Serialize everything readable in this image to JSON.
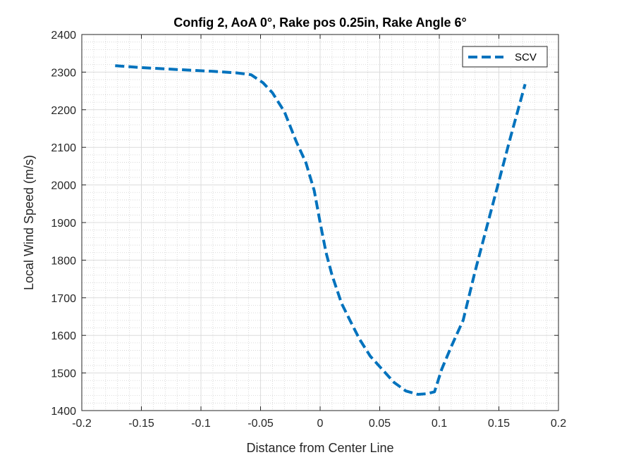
{
  "chart_data": {
    "type": "line",
    "title": "Config 2, AoA 0°, Rake pos 0.25in, Rake Angle 6°",
    "xlabel": "Distance from Center Line",
    "ylabel": "Local Wind Speed (m/s)",
    "xlim": [
      -0.2,
      0.2
    ],
    "ylim": [
      1400,
      2400
    ],
    "xticks": [
      -0.2,
      -0.15,
      -0.1,
      -0.05,
      0,
      0.05,
      0.1,
      0.15,
      0.2
    ],
    "xtick_labels": [
      "-0.2",
      "-0.15",
      "-0.1",
      "-0.05",
      "0",
      "0.05",
      "0.1",
      "0.15",
      "0.2"
    ],
    "yticks": [
      1400,
      1500,
      1600,
      1700,
      1800,
      1900,
      2000,
      2100,
      2200,
      2300,
      2400
    ],
    "ytick_labels": [
      "1400",
      "1500",
      "1600",
      "1700",
      "1800",
      "1900",
      "2000",
      "2100",
      "2200",
      "2300",
      "2400"
    ],
    "grid": true,
    "minor_grid": true,
    "legend": {
      "position": "top-right",
      "entries": [
        "SCV"
      ]
    },
    "series": [
      {
        "name": "SCV",
        "color": "#0072BD",
        "style": "dashed",
        "x": [
          -0.172,
          -0.15,
          -0.12,
          -0.09,
          -0.07,
          -0.058,
          -0.048,
          -0.04,
          -0.03,
          -0.02,
          -0.012,
          -0.005,
          0.0,
          0.005,
          0.01,
          0.018,
          0.025,
          0.033,
          0.042,
          0.052,
          0.062,
          0.072,
          0.082,
          0.09,
          0.096,
          0.102,
          0.11,
          0.12,
          0.13,
          0.14,
          0.15,
          0.16,
          0.172
        ],
        "y": [
          2317,
          2312,
          2307,
          2302,
          2298,
          2293,
          2272,
          2245,
          2195,
          2115,
          2060,
          1985,
          1900,
          1820,
          1760,
          1685,
          1640,
          1590,
          1545,
          1510,
          1475,
          1452,
          1443,
          1445,
          1450,
          1510,
          1570,
          1640,
          1770,
          1890,
          2010,
          2130,
          2268
        ]
      }
    ]
  }
}
